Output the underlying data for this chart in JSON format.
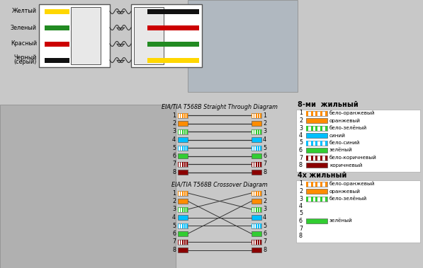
{
  "straight_title": "EIA/TIA T568B Straight Through Diagram",
  "crossover_title": "EIA/TIA T568B Crossover Diagram",
  "legend_8_title": "8-ми  жильный",
  "legend_4_title": "4х жильный",
  "top_labels_left": [
    "Желтый",
    "Зеленый",
    "Красный",
    "Черный\n(серый)"
  ],
  "top_wire_colors_left": [
    "#FFD700",
    "#228B22",
    "#CC0000",
    "#111111"
  ],
  "top_wire_colors_right": [
    "#111111",
    "#CC0000",
    "#228B22",
    "#FFD700"
  ],
  "wire_colors_8": [
    {
      "num": 1,
      "label": "бело-оранжевый",
      "color": "#FF8C00",
      "bg": "#FFFFFF",
      "stripe": true
    },
    {
      "num": 2,
      "label": "оранжевый",
      "color": "#FF8C00",
      "bg": "#FF8C00",
      "stripe": false
    },
    {
      "num": 3,
      "label": "бело-зелёный",
      "color": "#32CD32",
      "bg": "#FFFFFF",
      "stripe": true
    },
    {
      "num": 4,
      "label": "синий",
      "color": "#00BFFF",
      "bg": "#00BFFF",
      "stripe": false
    },
    {
      "num": 5,
      "label": "бело-синий",
      "color": "#00BFFF",
      "bg": "#FFFFFF",
      "stripe": true
    },
    {
      "num": 6,
      "label": "зелёный",
      "color": "#32CD32",
      "bg": "#32CD32",
      "stripe": false
    },
    {
      "num": 7,
      "label": "бело-коричневый",
      "color": "#8B0000",
      "bg": "#FFFFFF",
      "stripe": true
    },
    {
      "num": 8,
      "label": "коричневый",
      "color": "#8B0000",
      "bg": "#8B0000",
      "stripe": false
    }
  ],
  "wire_colors_4": [
    {
      "num": 1,
      "label": "бело-оранжевый",
      "color": "#FF8C00",
      "bg": "#FFFFFF",
      "stripe": true,
      "show": true
    },
    {
      "num": 2,
      "label": "оранжевый",
      "color": "#FF8C00",
      "bg": "#FF8C00",
      "stripe": false,
      "show": true
    },
    {
      "num": 3,
      "label": "бело-зелёный",
      "color": "#32CD32",
      "bg": "#FFFFFF",
      "stripe": true,
      "show": true
    },
    {
      "num": 4,
      "label": "",
      "color": "#FFFFFF",
      "bg": "#FFFFFF",
      "stripe": false,
      "show": false
    },
    {
      "num": 5,
      "label": "",
      "color": "#FFFFFF",
      "bg": "#FFFFFF",
      "stripe": false,
      "show": false
    },
    {
      "num": 6,
      "label": "зелёный",
      "color": "#32CD32",
      "bg": "#32CD32",
      "stripe": false,
      "show": true
    },
    {
      "num": 7,
      "label": "",
      "color": "#FFFFFF",
      "bg": "#FFFFFF",
      "stripe": false,
      "show": false
    },
    {
      "num": 8,
      "label": "",
      "color": "#FFFFFF",
      "bg": "#FFFFFF",
      "stripe": false,
      "show": false
    }
  ],
  "crossover_map": [
    3,
    6,
    1,
    4,
    5,
    2,
    7,
    8
  ],
  "bg_color": "#c8c8c8"
}
